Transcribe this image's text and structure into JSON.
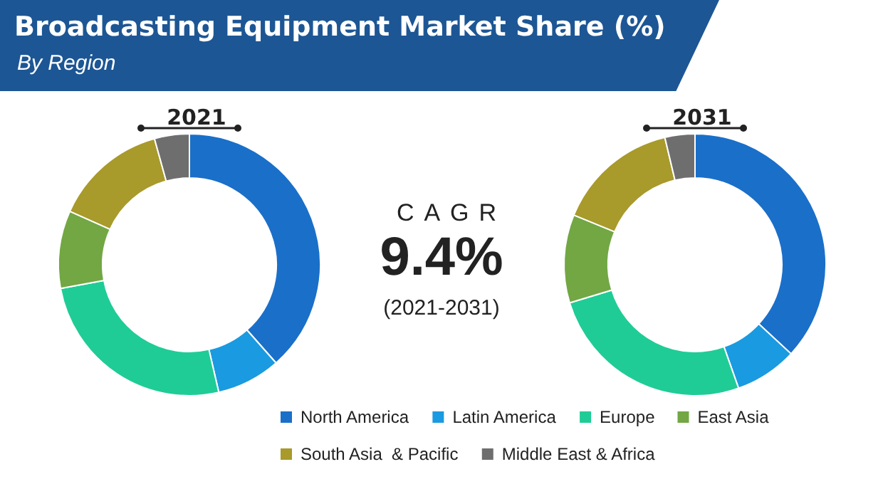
{
  "chart_data": [
    {
      "type": "other",
      "title": "Broadcasting Equipment Market Share (%)",
      "subtitle": "By Region",
      "annotations": [
        "CAGR",
        "9.4%",
        "(2021-2031)"
      ]
    },
    {
      "type": "donut",
      "categories": [
        "North America",
        "Latin America",
        "Europe",
        "East Asia",
        "South Asia  & Pacific",
        "Middle East & Africa"
      ],
      "colors": [
        "#1a6fc9",
        "#1a9ae0",
        "#1fcc96",
        "#72a744",
        "#a89a2b",
        "#6e6e6e"
      ],
      "legend": "bottom",
      "series": [
        {
          "name": "2021",
          "values": [
            38.5,
            7.9,
            25.7,
            9.6,
            14,
            4.3
          ]
        },
        {
          "name": "2031",
          "values": [
            36.9,
            7.7,
            25.7,
            10.9,
            15.1,
            3.7
          ]
        }
      ]
    }
  ]
}
